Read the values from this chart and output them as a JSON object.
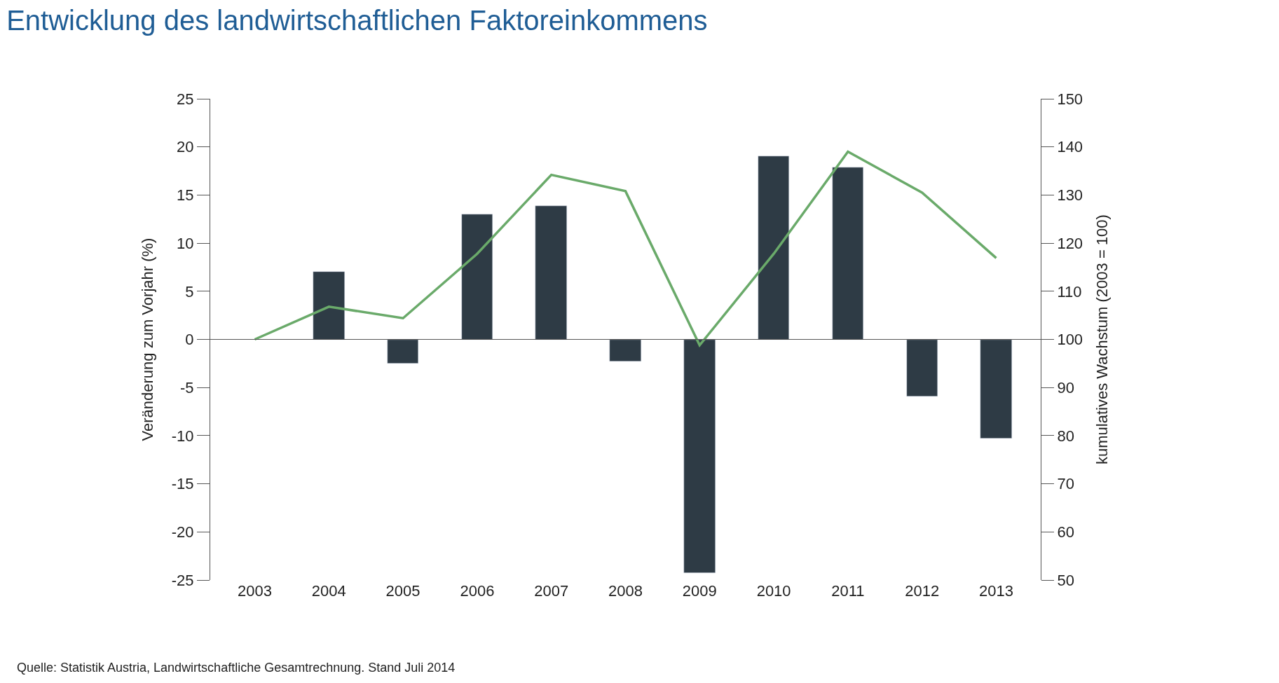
{
  "chart_data": {
    "type": "bar",
    "title": "Entwicklung des landwirtschaftlichen Faktoreinkommens",
    "categories": [
      "2003",
      "2004",
      "2005",
      "2006",
      "2007",
      "2008",
      "2009",
      "2010",
      "2011",
      "2012",
      "2013"
    ],
    "series": [
      {
        "color": "#2e3b45",
        "values": [
          null,
          7,
          -2.5,
          13,
          13.9,
          -2.3,
          -24.3,
          19,
          17.9,
          -5.9,
          -10.3
        ]
      },
      {
        "type": "line",
        "axis": "y2",
        "color": "#6aaa6a",
        "marker": "none",
        "values": [
          100,
          106.8,
          104.4,
          117.8,
          134.2,
          130.8,
          98.8,
          117.8,
          139,
          130.5,
          116.9
        ]
      }
    ],
    "ylabel": "Veränderung zum Vorjahr (%)",
    "y2label": "kumulatives Wachstum (2003 = 100)",
    "ylim": [
      -25,
      25
    ],
    "yticks": [
      -25,
      -20,
      -15,
      -10,
      -5,
      0,
      5,
      10,
      15,
      20,
      25
    ],
    "y2lim": [
      50,
      150
    ],
    "y2ticks": [
      50,
      60,
      70,
      80,
      90,
      100,
      110,
      120,
      130,
      140,
      150
    ],
    "annotations": [
      "Quelle: Statistik Austria, Landwirtschaftliche Gesamtrechnung. Stand Juli 2014"
    ]
  }
}
